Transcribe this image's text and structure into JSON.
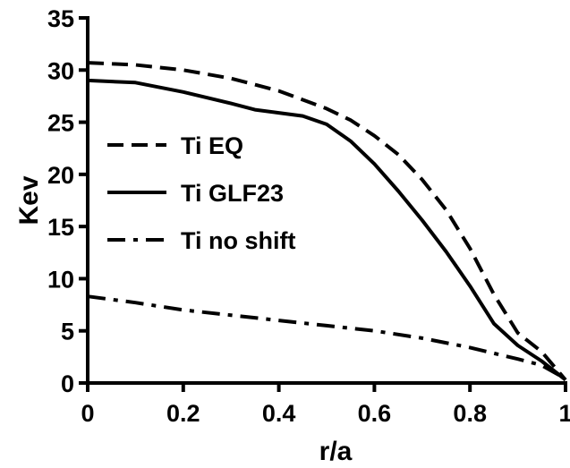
{
  "chart_data": {
    "type": "line",
    "title": "",
    "xlabel": "r/a",
    "ylabel": "Kev",
    "xlim": [
      0,
      1
    ],
    "ylim": [
      0,
      35
    ],
    "x_ticks": [
      0,
      0.2,
      0.4,
      0.6,
      0.8,
      1
    ],
    "x_tick_labels": [
      "0",
      "0.2",
      "0.4",
      "0.6",
      "0.8",
      "1"
    ],
    "y_ticks": [
      0,
      5,
      10,
      15,
      20,
      25,
      30,
      35
    ],
    "y_tick_labels": [
      "0",
      "5",
      "10",
      "15",
      "20",
      "25",
      "30",
      "35"
    ],
    "grid": false,
    "legend_position": "middle-left",
    "series": [
      {
        "name": "Ti EQ",
        "style": "dashed",
        "color": "#000000",
        "x": [
          0,
          0.1,
          0.2,
          0.3,
          0.4,
          0.5,
          0.55,
          0.6,
          0.65,
          0.7,
          0.75,
          0.8,
          0.85,
          0.9,
          0.95,
          1.0
        ],
        "y": [
          30.7,
          30.5,
          30.0,
          29.2,
          28.0,
          26.3,
          25.2,
          23.7,
          21.9,
          19.5,
          16.6,
          12.9,
          8.5,
          4.8,
          3.0,
          0.3
        ]
      },
      {
        "name": "Ti GLF23",
        "style": "solid",
        "color": "#000000",
        "x": [
          0,
          0.1,
          0.2,
          0.3,
          0.35,
          0.4,
          0.45,
          0.5,
          0.55,
          0.6,
          0.65,
          0.7,
          0.75,
          0.8,
          0.85,
          0.9,
          0.95,
          1.0
        ],
        "y": [
          29.0,
          28.8,
          27.9,
          26.8,
          26.2,
          25.9,
          25.6,
          24.8,
          23.2,
          21.0,
          18.4,
          15.6,
          12.6,
          9.3,
          5.7,
          3.6,
          2.1,
          0.3
        ]
      },
      {
        "name": "Ti no shift",
        "style": "dash-dot",
        "color": "#000000",
        "x": [
          0,
          0.1,
          0.2,
          0.3,
          0.4,
          0.5,
          0.6,
          0.7,
          0.8,
          0.9,
          0.95,
          1.0
        ],
        "y": [
          8.3,
          7.7,
          7.0,
          6.5,
          6.0,
          5.5,
          5.0,
          4.3,
          3.4,
          2.3,
          1.7,
          0.4
        ]
      }
    ]
  }
}
